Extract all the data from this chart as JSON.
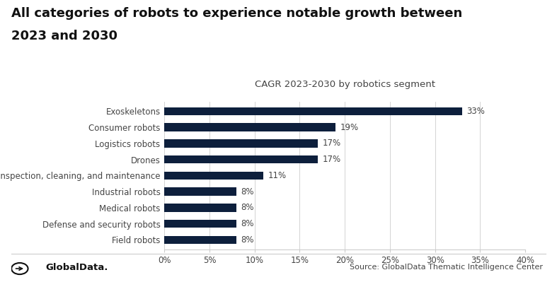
{
  "title_line1": "All categories of robots to experience notable growth between",
  "title_line2": "2023 and 2030",
  "subtitle": "CAGR 2023-2030 by robotics segment",
  "categories": [
    "Field robots",
    "Defense and security robots",
    "Medical robots",
    "Industrial robots",
    "Inspection, cleaning, and maintenance",
    "Drones",
    "Logistics robots",
    "Consumer robots",
    "Exoskeletons"
  ],
  "values": [
    8,
    8,
    8,
    8,
    11,
    17,
    17,
    19,
    33
  ],
  "bar_color": "#0d1f3c",
  "label_color": "#444444",
  "value_labels": [
    "8%",
    "8%",
    "8%",
    "8%",
    "11%",
    "17%",
    "17%",
    "19%",
    "33%"
  ],
  "xlim": [
    0,
    40
  ],
  "xticks": [
    0,
    5,
    10,
    15,
    20,
    25,
    30,
    35,
    40
  ],
  "xtick_labels": [
    "0%",
    "5%",
    "10%",
    "15%",
    "20%",
    "25%",
    "30%",
    "35%",
    "40%"
  ],
  "source_text": "Source: GlobalData Thematic Intelligence Center",
  "logo_text": "GlobalData.",
  "background_color": "#ffffff",
  "grid_color": "#cccccc",
  "bar_height": 0.5,
  "title_fontsize": 13,
  "subtitle_fontsize": 9.5,
  "label_fontsize": 8.5,
  "tick_fontsize": 8.5,
  "value_fontsize": 8.5
}
